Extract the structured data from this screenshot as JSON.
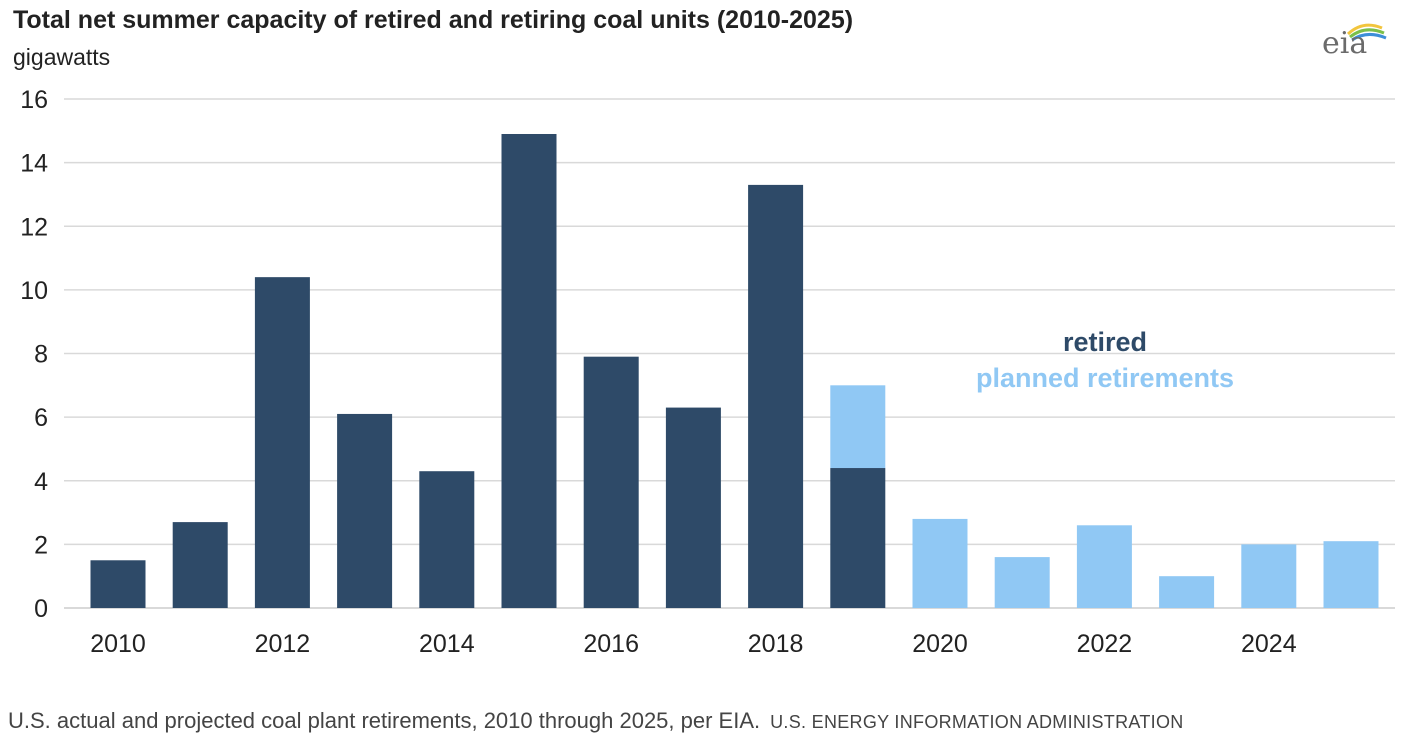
{
  "title": "Total net summer capacity of retired and retiring coal units (2010-2025)",
  "unit_label": "gigawatts",
  "logo_text": "eia",
  "caption": "U.S. actual and projected coal plant retirements, 2010 through 2025, per EIA.",
  "caption_agency": "U.S. ENERGY INFORMATION ADMINISTRATION",
  "colors": {
    "retired": "#2e4a68",
    "planned": "#90c8f4",
    "grid": "#d9d9d9"
  },
  "chart_data": {
    "type": "bar",
    "stacked": true,
    "title": "Total net summer capacity of retired and retiring coal units (2010-2025)",
    "ylabel": "gigawatts",
    "ylim": [
      0,
      16
    ],
    "yticks": [
      0,
      2,
      4,
      6,
      8,
      10,
      12,
      14,
      16
    ],
    "categories": [
      "2010",
      "2011",
      "2012",
      "2013",
      "2014",
      "2015",
      "2016",
      "2017",
      "2018",
      "2019",
      "2020",
      "2021",
      "2022",
      "2023",
      "2024",
      "2025"
    ],
    "xtick_labels": [
      "2010",
      "2012",
      "2014",
      "2016",
      "2018",
      "2020",
      "2022",
      "2024"
    ],
    "series": [
      {
        "name": "retired",
        "values": [
          1.5,
          2.7,
          10.4,
          6.1,
          4.3,
          14.9,
          7.9,
          6.3,
          13.3,
          4.4,
          0,
          0,
          0,
          0,
          0,
          0
        ]
      },
      {
        "name": "planned retirements",
        "values": [
          0,
          0,
          0,
          0,
          0,
          0,
          0,
          0,
          0,
          2.6,
          2.8,
          1.6,
          2.6,
          1.0,
          2.0,
          2.1
        ]
      }
    ],
    "grid": true,
    "legend": "right-center"
  }
}
